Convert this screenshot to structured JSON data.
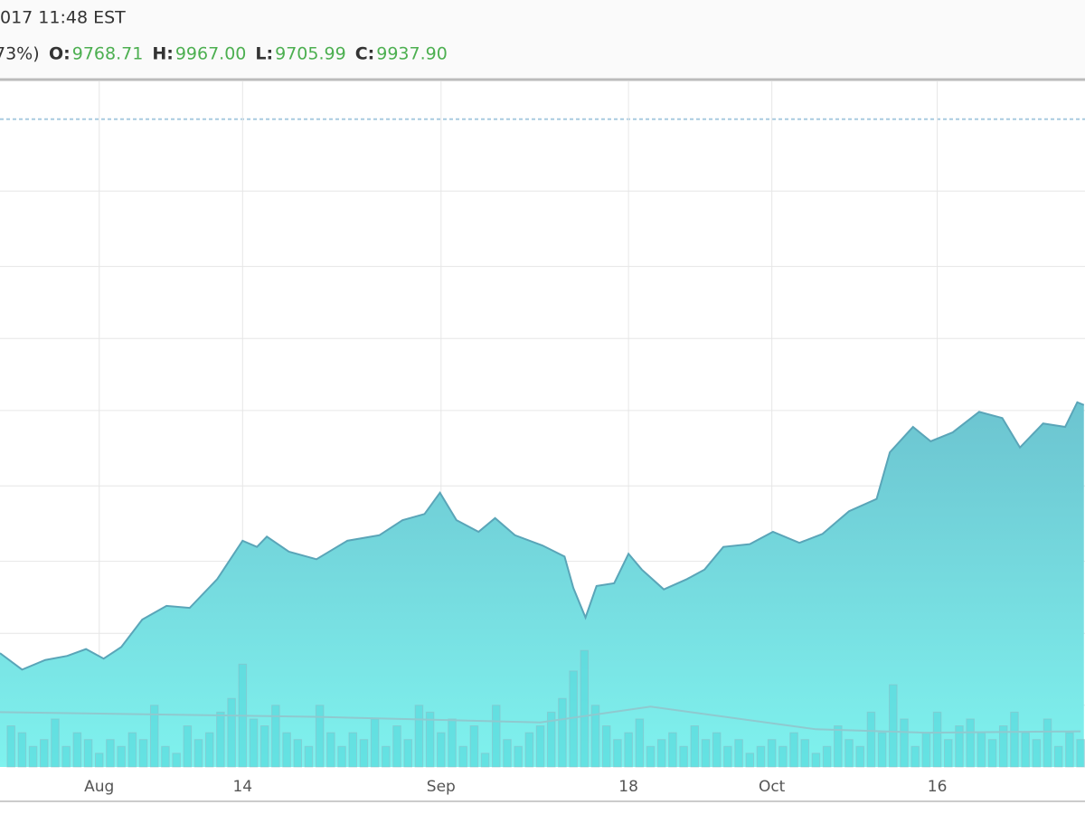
{
  "header": {
    "datetime": "017 11:48 EST",
    "change": "73%)",
    "ohlc": [
      {
        "label": "O:",
        "value": "9768.71"
      },
      {
        "label": "H:",
        "value": "9967.00"
      },
      {
        "label": "L:",
        "value": "9705.99"
      },
      {
        "label": "C:",
        "value": "9937.90"
      }
    ]
  },
  "chart_data": {
    "type": "area",
    "x": [
      -9.0,
      -7.0,
      -4.9,
      -2.9,
      -1.2,
      0.4,
      2.0,
      3.9,
      6.1,
      8.2,
      10.7,
      13.0,
      14.3,
      15.2,
      17.2,
      19.7,
      22.5,
      25.4,
      27.5,
      29.5,
      30.9,
      32.4,
      34.4,
      35.9,
      37.7,
      40.2,
      42.2,
      43.0,
      44.1,
      45.1,
      46.7,
      48.0,
      49.2,
      51.2,
      53.3,
      54.9,
      56.6,
      59.0,
      61.1,
      63.5,
      65.6,
      68.0,
      70.5,
      71.7,
      73.8,
      75.4,
      77.4,
      79.8,
      81.9,
      83.5,
      85.6,
      87.6,
      88.7,
      89.3
    ],
    "series": [
      {
        "color": "#6fcfd8",
        "values": [
          16.6,
          14.2,
          15.6,
          16.2,
          17.2,
          15.8,
          17.5,
          21.5,
          23.5,
          23.2,
          27.4,
          33.0,
          32.1,
          33.6,
          31.4,
          30.3,
          33.0,
          33.8,
          36.0,
          36.9,
          40.0,
          36.0,
          34.3,
          36.3,
          33.8,
          32.3,
          30.7,
          26.1,
          21.8,
          26.4,
          26.8,
          31.1,
          28.8,
          25.9,
          27.4,
          28.8,
          32.1,
          32.5,
          34.3,
          32.7,
          34.0,
          37.3,
          39.1,
          45.9,
          49.6,
          47.5,
          48.8,
          51.8,
          50.9,
          46.6,
          50.1,
          49.6,
          53.2,
          52.8
        ]
      }
    ],
    "volume": {
      "color": "#4fd6d8",
      "x": [
        -8,
        -7,
        -6,
        -5,
        -4,
        -3,
        -2,
        -1,
        0,
        1,
        2,
        3,
        4,
        5,
        6,
        7,
        8,
        9,
        10,
        11,
        12,
        13,
        14,
        15,
        16,
        17,
        18,
        19,
        20,
        21,
        22,
        23,
        24,
        25,
        26,
        27,
        28,
        29,
        30,
        31,
        32,
        33,
        34,
        35,
        36,
        37,
        38,
        39,
        40,
        41,
        42,
        43,
        44,
        45,
        46,
        47,
        48,
        49,
        50,
        51,
        52,
        53,
        54,
        55,
        56,
        57,
        58,
        59,
        60,
        61,
        62,
        63,
        64,
        65,
        66,
        67,
        68,
        69,
        70,
        71,
        72,
        73,
        74,
        75,
        76,
        77,
        78,
        79,
        80,
        81,
        82,
        83,
        84,
        85,
        86,
        87,
        88,
        89
      ],
      "values": [
        6,
        5,
        3,
        4,
        7,
        3,
        5,
        4,
        2,
        4,
        3,
        5,
        4,
        9,
        3,
        2,
        6,
        4,
        5,
        8,
        10,
        15,
        7,
        6,
        9,
        5,
        4,
        3,
        9,
        5,
        3,
        5,
        4,
        7,
        3,
        6,
        4,
        9,
        8,
        5,
        7,
        3,
        6,
        2,
        9,
        4,
        3,
        5,
        6,
        8,
        10,
        14,
        17,
        9,
        6,
        4,
        5,
        7,
        3,
        4,
        5,
        3,
        6,
        4,
        5,
        3,
        4,
        2,
        3,
        4,
        3,
        5,
        4,
        2,
        3,
        6,
        4,
        3,
        8,
        5,
        12,
        7,
        3,
        5,
        8,
        4,
        6,
        7,
        5,
        4,
        6,
        8,
        5,
        4,
        7,
        3,
        5,
        4
      ]
    },
    "volume_average": {
      "color": "#8fc9cf",
      "x": [
        -9,
        20,
        40,
        50,
        65,
        75,
        89
      ],
      "values": [
        8.0,
        7.3,
        6.5,
        8.8,
        5.5,
        5.0,
        5.2
      ]
    },
    "xlim": [
      -9,
      89.4
    ],
    "xticks": [
      {
        "value": 0,
        "label": "Aug"
      },
      {
        "value": 13,
        "label": "14"
      },
      {
        "value": 31,
        "label": "Sep"
      },
      {
        "value": 48,
        "label": "18"
      },
      {
        "value": 61,
        "label": "Oct"
      },
      {
        "value": 76,
        "label": "16"
      }
    ],
    "ylim": [
      0,
      100
    ],
    "yticks": [
      9,
      19.5,
      30,
      41,
      52,
      62.5,
      73,
      84,
      94.5
    ],
    "grid": true
  }
}
